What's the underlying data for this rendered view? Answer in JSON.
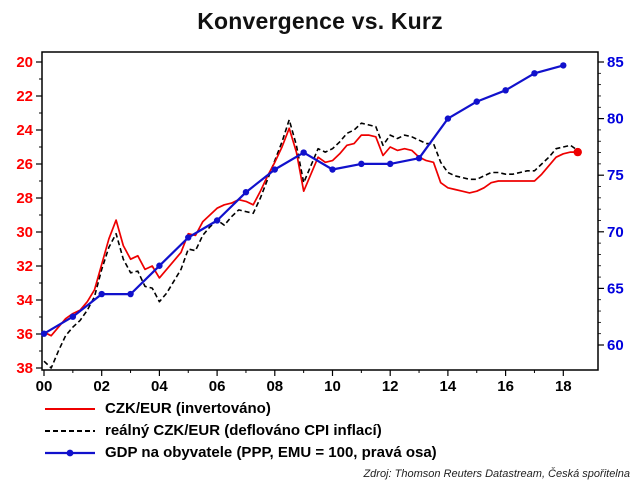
{
  "title": "Konvergence vs. Kurz",
  "source": "Zdroj: Thomson Reuters Datastream, Česká spořitelna",
  "chart_data": {
    "type": "line",
    "title": "Konvergence vs. Kurz",
    "grid": false,
    "legend_position": "bottom-left",
    "left_axis": {
      "ticks": [
        20,
        22,
        24,
        26,
        28,
        30,
        32,
        34,
        36,
        38
      ],
      "inverted": true,
      "color": "#ff0000",
      "range": [
        20,
        38
      ]
    },
    "right_axis": {
      "ticks": [
        85,
        80,
        75,
        70,
        65,
        60
      ],
      "color": "#0000dd",
      "range": [
        60,
        85
      ]
    },
    "x_axis": {
      "tick_labels": [
        "00",
        "02",
        "04",
        "06",
        "08",
        "10",
        "12",
        "14",
        "16",
        "18"
      ],
      "tick_years": [
        2000,
        2002,
        2004,
        2006,
        2008,
        2010,
        2012,
        2014,
        2016,
        2018
      ],
      "range": [
        2000,
        2019
      ]
    },
    "series": [
      {
        "name": "CZK/EUR (invertováno)",
        "axis": "left",
        "color": "#ee0000",
        "width": 1.7,
        "dash": "",
        "markers": false,
        "end_marker": true,
        "x_start": 2000,
        "x_step": 0.25,
        "values": [
          35.9,
          36.1,
          35.6,
          35.1,
          34.8,
          34.6,
          34.1,
          33.4,
          31.9,
          30.4,
          29.3,
          30.8,
          31.6,
          31.4,
          32.2,
          32.0,
          32.7,
          32.2,
          31.7,
          31.2,
          30.1,
          30.2,
          29.4,
          29.0,
          28.6,
          28.4,
          28.3,
          28.1,
          28.2,
          28.4,
          27.6,
          26.7,
          25.9,
          25.0,
          23.9,
          25.3,
          27.6,
          26.6,
          25.6,
          25.9,
          25.8,
          25.4,
          24.9,
          24.8,
          24.3,
          24.3,
          24.4,
          25.5,
          25.0,
          25.2,
          25.1,
          25.2,
          25.6,
          25.8,
          25.9,
          27.1,
          27.4,
          27.5,
          27.6,
          27.7,
          27.6,
          27.4,
          27.1,
          27.0,
          27.0,
          27.0,
          27.0,
          27.0,
          27.0,
          26.6,
          26.1,
          25.6,
          25.4,
          25.3,
          25.3
        ]
      },
      {
        "name": "reálný CZK/EUR (deflováno CPI inflací)",
        "axis": "left",
        "color": "#000000",
        "width": 1.6,
        "dash": "5,3",
        "markers": false,
        "end_marker": false,
        "x_start": 2000,
        "x_step": 0.25,
        "values": [
          37.6,
          38.0,
          37.0,
          36.1,
          35.6,
          35.2,
          34.6,
          33.8,
          32.2,
          30.9,
          30.1,
          31.6,
          32.4,
          32.3,
          33.2,
          33.3,
          34.1,
          33.6,
          32.9,
          32.2,
          31.0,
          31.1,
          30.2,
          29.7,
          29.3,
          29.6,
          29.1,
          28.7,
          28.8,
          28.9,
          28.0,
          26.9,
          25.8,
          24.7,
          23.4,
          24.9,
          27.1,
          26.1,
          25.1,
          25.3,
          25.1,
          24.7,
          24.2,
          24.0,
          23.6,
          23.7,
          23.8,
          24.9,
          24.3,
          24.5,
          24.3,
          24.4,
          24.6,
          24.8,
          24.8,
          25.9,
          26.5,
          26.7,
          26.8,
          26.9,
          26.9,
          26.7,
          26.5,
          26.5,
          26.6,
          26.6,
          26.5,
          26.4,
          26.4,
          26.0,
          25.6,
          25.1,
          25.0,
          24.9,
          25.2
        ]
      },
      {
        "name": "GDP na obyvatele (PPP, EMU = 100, pravá osa)",
        "axis": "right",
        "color": "#1111cc",
        "width": 2.2,
        "dash": "",
        "markers": true,
        "end_marker": false,
        "x_start": 2000,
        "x_step": 1,
        "values": [
          61,
          62.5,
          64.5,
          64.5,
          67,
          69.5,
          71,
          73.5,
          75.5,
          77,
          75.5,
          76,
          76,
          76.5,
          80,
          81.5,
          82.5,
          84,
          84.7
        ]
      }
    ]
  }
}
